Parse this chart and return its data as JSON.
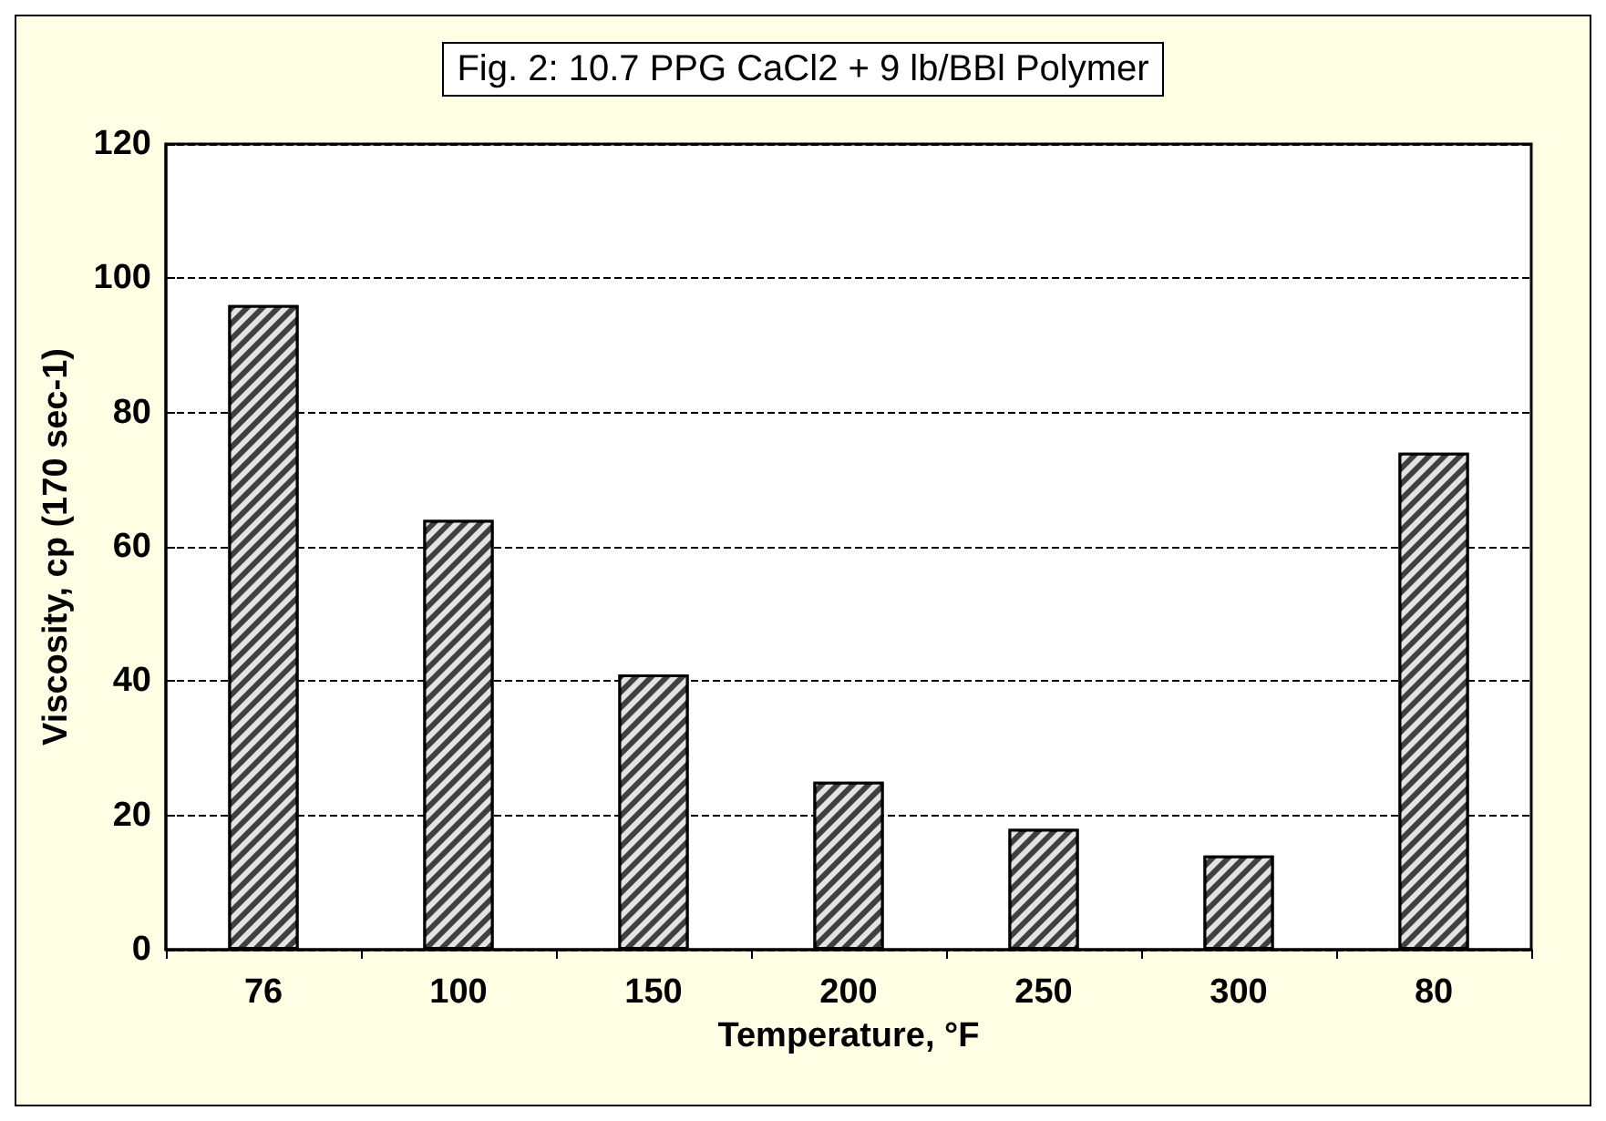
{
  "chart_data": {
    "type": "bar",
    "title": "Fig. 2: 10.7 PPG CaCl2 + 9 lb/BBl Polymer",
    "xlabel": "Temperature, °F",
    "ylabel": "Viscosity, cp (170 sec-1)",
    "categories": [
      "76",
      "100",
      "150",
      "200",
      "250",
      "300",
      "80"
    ],
    "values": [
      96,
      64,
      41,
      25,
      18,
      14,
      74
    ],
    "color": "#404040",
    "ylim": [
      0,
      120
    ],
    "yticks": [
      0,
      20,
      40,
      60,
      80,
      100,
      120
    ],
    "grid": "y"
  }
}
